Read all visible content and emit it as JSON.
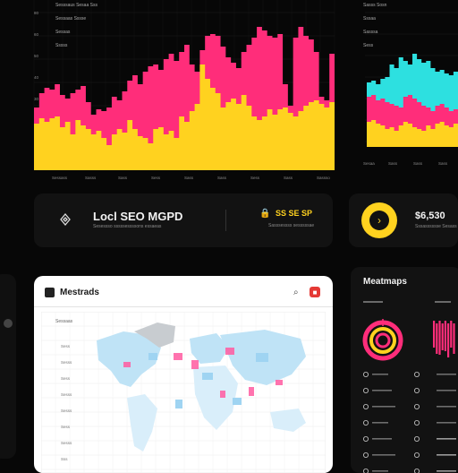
{
  "top_left_chart": {
    "legend_lines": [
      "Sesssaus  Sesaa  Sss",
      "Sessaas  Sssse",
      "Sessas",
      "Sssss"
    ],
    "y_ticks": [
      "80",
      "60",
      "50",
      "40",
      "30",
      "20",
      "10"
    ],
    "x_ticks": [
      "Sessass",
      "Sasss",
      "Sass",
      "Sess",
      "Sass",
      "Sass",
      "Sess",
      "Sass",
      "Sassso"
    ],
    "colors": {
      "pink": "#ff2d7a",
      "yellow": "#ffd21f"
    }
  },
  "top_right_chart": {
    "legend_lines": [
      "Sasss  Sosn",
      "Sssaa",
      "Sasssa",
      "Sess"
    ],
    "x_ticks": [
      "Sesaa",
      "Sass",
      "Sass",
      "Sass"
    ],
    "colors": {
      "cyan": "#2de0e0",
      "pink": "#ff2d7a",
      "yellow": "#ffd21f"
    }
  },
  "seo_card": {
    "icon": "puzzle-icon",
    "title": "Locl SEO MGPD",
    "subtitle": "Sesessso sssssessssons essaeas",
    "stat_icon": "lock-icon",
    "stat_value": "SS SE SP",
    "stat_label": "Sasssessss sesssssae"
  },
  "value_card": {
    "icon": "play-icon",
    "value": "$6,530",
    "subtitle": "Sssasssssse  Sesass"
  },
  "map_card": {
    "icon": "map-icon",
    "title": "Mestrads",
    "search_icon": "search-icon",
    "close_icon": "close-icon",
    "subheader": "Sessaas",
    "y_labels": [
      "Sess",
      "Sesss",
      "Sess",
      "Sesss",
      "Sesss",
      "Sess",
      "Sesss",
      "Sss"
    ],
    "colors": {
      "land_blue": "#bfe3f6",
      "land_light": "#d9eefa",
      "pink": "#ff5aa0",
      "gray": "#c8ccd0"
    }
  },
  "heatmaps_card": {
    "title": "Meatmaps",
    "target_icon": "target-icon",
    "colors": {
      "pink": "#ff2d7a",
      "yellow": "#ffd21f"
    }
  }
}
